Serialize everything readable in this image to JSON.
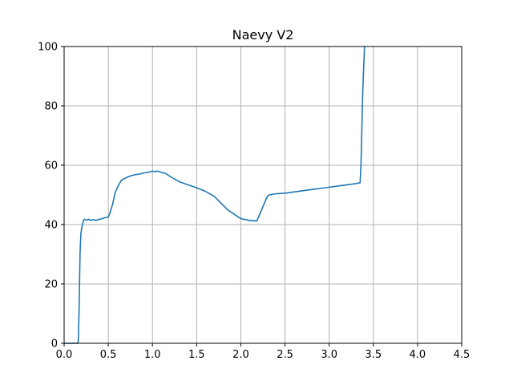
{
  "chart_data": {
    "type": "line",
    "title": "Naevy V2",
    "xlabel": "",
    "ylabel": "",
    "xlim": [
      0,
      4.5
    ],
    "ylim": [
      0,
      100
    ],
    "xticks": [
      0.0,
      0.5,
      1.0,
      1.5,
      2.0,
      2.5,
      3.0,
      3.5,
      4.0,
      4.5
    ],
    "xtick_labels": [
      "0.0",
      "0.5",
      "1.0",
      "1.5",
      "2.0",
      "2.5",
      "3.0",
      "3.5",
      "4.0",
      "4.5"
    ],
    "yticks": [
      0,
      20,
      40,
      60,
      80,
      100
    ],
    "ytick_labels": [
      "0",
      "20",
      "40",
      "60",
      "80",
      "100"
    ],
    "grid": true,
    "series": [
      {
        "color": "#1f77b4",
        "x": [
          0.0,
          0.15,
          0.16,
          0.17,
          0.18,
          0.19,
          0.2,
          0.22,
          0.23,
          0.25,
          0.28,
          0.3,
          0.33,
          0.36,
          0.4,
          0.43,
          0.46,
          0.5,
          0.52,
          0.55,
          0.58,
          0.62,
          0.65,
          0.68,
          0.72,
          0.76,
          0.8,
          0.85,
          0.9,
          0.95,
          1.0,
          1.03,
          1.06,
          1.1,
          1.15,
          1.2,
          1.3,
          1.4,
          1.5,
          1.6,
          1.7,
          1.75,
          1.8,
          1.85,
          1.9,
          1.95,
          2.0,
          2.05,
          2.1,
          2.15,
          2.18,
          2.2,
          2.25,
          2.3,
          2.32,
          2.4,
          2.5,
          2.6,
          2.7,
          2.8,
          2.9,
          3.0,
          3.1,
          3.2,
          3.3,
          3.35,
          3.36,
          3.38,
          3.4
        ],
        "y": [
          0,
          0,
          0.5,
          12,
          30,
          37,
          39,
          41.5,
          41.8,
          41.5,
          41.8,
          41.4,
          41.7,
          41.4,
          41.8,
          42.0,
          42.3,
          42.5,
          44,
          47,
          51,
          53.5,
          55,
          55.5,
          56.0,
          56.5,
          56.8,
          57.0,
          57.4,
          57.6,
          58.0,
          57.9,
          58.0,
          57.6,
          57.2,
          56.2,
          54.5,
          53.4,
          52.4,
          51.2,
          49.5,
          48.0,
          46.5,
          45.0,
          44.0,
          43.0,
          42.0,
          41.7,
          41.4,
          41.3,
          41.2,
          42.5,
          46.0,
          49.5,
          50.0,
          50.4,
          50.6,
          51.0,
          51.4,
          51.8,
          52.2,
          52.6,
          53.0,
          53.4,
          53.8,
          54.1,
          60,
          85,
          100
        ]
      }
    ]
  }
}
